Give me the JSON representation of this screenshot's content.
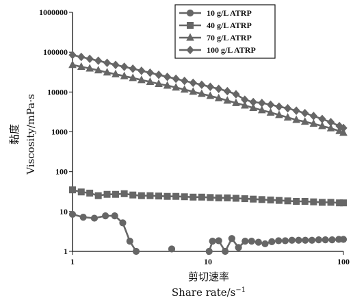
{
  "chart_data": {
    "type": "line",
    "xscale": "log",
    "yscale": "log",
    "xlim": [
      1,
      100
    ],
    "ylim": [
      1,
      1000000
    ],
    "xticks": [
      {
        "value": 1,
        "label": "1"
      },
      {
        "value": 10,
        "label": "10"
      },
      {
        "value": 100,
        "label": "100"
      }
    ],
    "yticks": [
      {
        "value": 1,
        "label": "1"
      },
      {
        "value": 10,
        "label": "10"
      },
      {
        "value": 100,
        "label": "100"
      },
      {
        "value": 1000,
        "label": "1000"
      },
      {
        "value": 10000,
        "label": "10000"
      },
      {
        "value": 100000,
        "label": "100000"
      },
      {
        "value": 1000000,
        "label": "1000000"
      }
    ],
    "xlabel_cn": "剪切速率",
    "xlabel_en": "Share rate/s",
    "xlabel_en_sup": "−1",
    "ylabel_cn": "黏度",
    "ylabel_en": "Viscosity/mPa·s",
    "grid": false,
    "legend": "top-right",
    "series": [
      {
        "name": "10 g/L ATRP",
        "marker": "circle",
        "color": "#666666",
        "segments": [
          [
            [
              1.0,
              8.5
            ],
            [
              1.2,
              7.2
            ],
            [
              1.45,
              6.8
            ],
            [
              1.75,
              7.8
            ],
            [
              2.05,
              7.8
            ],
            [
              2.35,
              5.2
            ],
            [
              2.65,
              1.8
            ],
            [
              2.95,
              1.0
            ]
          ],
          [
            [
              5.4,
              1.15
            ]
          ],
          [
            [
              10.2,
              1.0
            ],
            [
              10.8,
              1.8
            ],
            [
              12.0,
              1.85
            ],
            [
              13.4,
              1.0
            ],
            [
              15.0,
              2.1
            ],
            [
              16.8,
              1.25
            ],
            [
              18.8,
              1.8
            ],
            [
              21.0,
              1.8
            ],
            [
              23.6,
              1.7
            ],
            [
              26.4,
              1.55
            ],
            [
              29.6,
              1.75
            ],
            [
              33.2,
              1.85
            ],
            [
              37.2,
              1.85
            ],
            [
              41.7,
              1.9
            ],
            [
              46.7,
              1.9
            ],
            [
              52.3,
              1.9
            ],
            [
              58.6,
              1.9
            ],
            [
              65.7,
              1.95
            ],
            [
              73.6,
              1.95
            ],
            [
              82.5,
              1.95
            ],
            [
              92.4,
              2.0
            ],
            [
              100,
              2.0
            ]
          ]
        ]
      },
      {
        "name": "40 g/L ATRP",
        "marker": "square",
        "color": "#666666",
        "segments": [
          [
            [
              1.0,
              35
            ],
            [
              1.16,
              31
            ],
            [
              1.34,
              29
            ],
            [
              1.55,
              25
            ],
            [
              1.8,
              27
            ],
            [
              2.08,
              27
            ],
            [
              2.41,
              28
            ],
            [
              2.79,
              26
            ],
            [
              3.23,
              25
            ],
            [
              3.74,
              25
            ],
            [
              4.33,
              24.5
            ],
            [
              5.01,
              24
            ],
            [
              5.8,
              24
            ],
            [
              6.71,
              23.5
            ],
            [
              7.77,
              23
            ],
            [
              8.99,
              23
            ],
            [
              10.4,
              22.5
            ],
            [
              12.0,
              22
            ],
            [
              13.9,
              22
            ],
            [
              16.1,
              21.5
            ],
            [
              18.7,
              21
            ],
            [
              21.6,
              20.5
            ],
            [
              25.0,
              20
            ],
            [
              29.0,
              19.5
            ],
            [
              33.5,
              19
            ],
            [
              38.8,
              18.5
            ],
            [
              44.9,
              18
            ],
            [
              52.0,
              18
            ],
            [
              60.2,
              17.5
            ],
            [
              69.7,
              17
            ],
            [
              80.7,
              17
            ],
            [
              93.4,
              16.5
            ],
            [
              100,
              16.5
            ]
          ]
        ]
      },
      {
        "name": "70 g/L ATRP",
        "marker": "triangle",
        "color": "#666666",
        "segments": [
          [
            [
              1.0,
              48000
            ],
            [
              1.16,
              43000
            ],
            [
              1.34,
              39000
            ],
            [
              1.55,
              35000
            ],
            [
              1.8,
              31000
            ],
            [
              2.08,
              28000
            ],
            [
              2.41,
              25000
            ],
            [
              2.79,
              22500
            ],
            [
              3.23,
              20000
            ],
            [
              3.74,
              18000
            ],
            [
              4.33,
              16000
            ],
            [
              5.01,
              14500
            ],
            [
              5.8,
              13000
            ],
            [
              6.71,
              11500
            ],
            [
              7.77,
              10200
            ],
            [
              8.99,
              9000
            ],
            [
              10.4,
              8000
            ],
            [
              12.0,
              7000
            ],
            [
              13.9,
              6100
            ],
            [
              16.1,
              5300
            ],
            [
              18.7,
              4600
            ],
            [
              21.6,
              4000
            ],
            [
              25.0,
              3500
            ],
            [
              29.0,
              3050
            ],
            [
              33.5,
              2650
            ],
            [
              38.8,
              2300
            ],
            [
              44.9,
              2000
            ],
            [
              52.0,
              1800
            ],
            [
              60.2,
              1600
            ],
            [
              69.7,
              1400
            ],
            [
              80.7,
              1230
            ],
            [
              93.4,
              1050
            ],
            [
              100,
              950
            ]
          ]
        ]
      },
      {
        "name": "100 g/L ATRP",
        "marker": "diamond",
        "color": "#666666",
        "segments": [
          [
            [
              1.0,
              85000
            ],
            [
              1.16,
              76000
            ],
            [
              1.34,
              68000
            ],
            [
              1.55,
              61000
            ],
            [
              1.8,
              54000
            ],
            [
              2.08,
              48000
            ],
            [
              2.41,
              43000
            ],
            [
              2.79,
              38500
            ],
            [
              3.23,
              34000
            ],
            [
              3.74,
              30500
            ],
            [
              4.33,
              27000
            ],
            [
              5.01,
              24000
            ],
            [
              5.8,
              21500
            ],
            [
              6.71,
              19000
            ],
            [
              7.77,
              17000
            ],
            [
              8.99,
              15200
            ],
            [
              10.4,
              13500
            ],
            [
              12.0,
              12000
            ],
            [
              13.9,
              10500
            ],
            [
              16.1,
              8800
            ],
            [
              18.7,
              6400
            ],
            [
              21.6,
              5600
            ],
            [
              25.0,
              5300
            ],
            [
              29.0,
              4800
            ],
            [
              33.5,
              4300
            ],
            [
              38.8,
              3900
            ],
            [
              44.9,
              3400
            ],
            [
              52.0,
              2950
            ],
            [
              60.2,
              2500
            ],
            [
              69.7,
              2100
            ],
            [
              80.7,
              1750
            ],
            [
              93.4,
              1400
            ],
            [
              100,
              1250
            ]
          ]
        ]
      }
    ]
  }
}
